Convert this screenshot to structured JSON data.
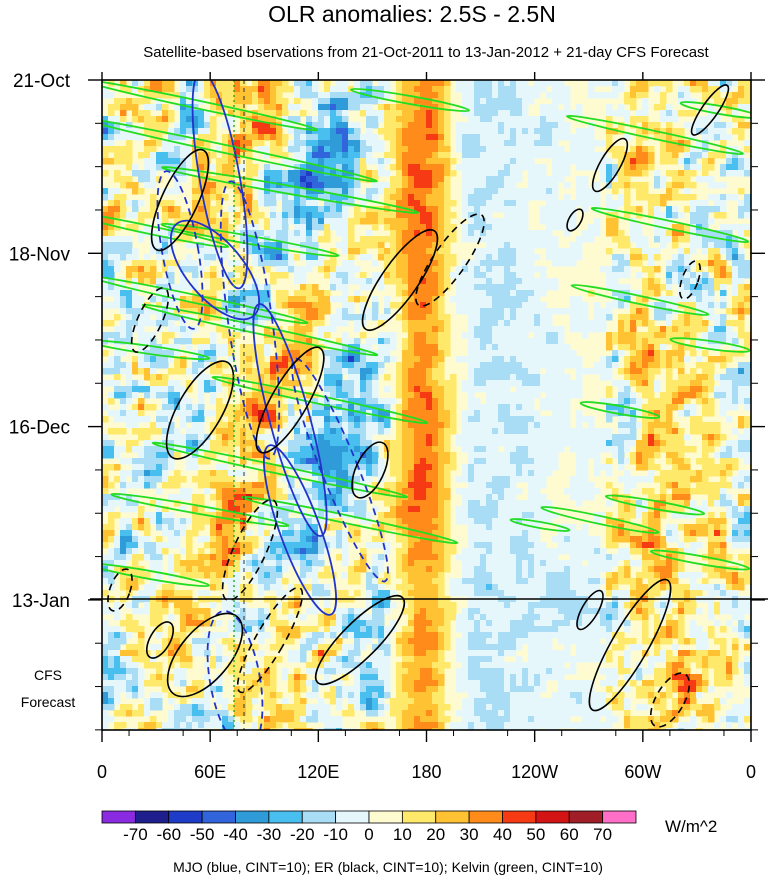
{
  "chart_data": {
    "type": "heatmap",
    "title": "OLR anomalies: 2.5S - 2.5N",
    "subtitle": "Satellite-based bservations from 21-Oct-2011 to 13-Jan-2012 + 21-day CFS Forecast",
    "x_ticks": [
      "0",
      "60E",
      "120E",
      "180",
      "120W",
      "60W",
      "0"
    ],
    "y_ticks": [
      "21-Oct",
      "18-Nov",
      "16-Dec",
      "13-Jan"
    ],
    "forecast_label": [
      "CFS",
      "Forecast"
    ],
    "colorbar": {
      "labels": [
        "-70",
        "-60",
        "-50",
        "-40",
        "-30",
        "-20",
        "-10",
        "0",
        "10",
        "20",
        "30",
        "40",
        "50",
        "60",
        "70"
      ],
      "colors": [
        "#8a2be2",
        "#1e1e8c",
        "#1f3cc8",
        "#3264dc",
        "#2f9bd8",
        "#49bfef",
        "#a9dcf5",
        "#e6f7fc",
        "#fffbd0",
        "#ffe96a",
        "#ffc232",
        "#ff8c1a",
        "#f53a14",
        "#d21414",
        "#a01e28",
        "#ff6ec7"
      ],
      "units": "W/m^2"
    },
    "footer": "MJO (blue, CINT=10); ER (black, CINT=10); Kelvin (green, CINT=10)",
    "series_colors": {
      "mjo": "#2233cc",
      "er": "#000000",
      "kelvin": "#22dd22"
    }
  }
}
